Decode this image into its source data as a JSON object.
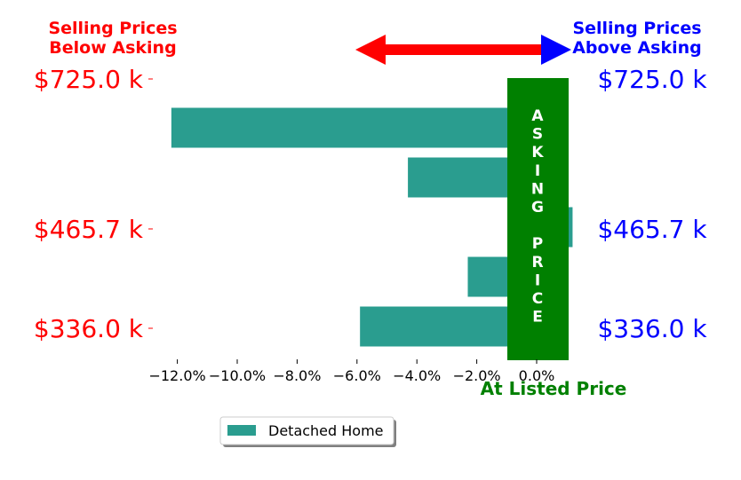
{
  "header": {
    "left_line1": "Selling Prices",
    "left_line2": "Below Asking",
    "right_line1": "Selling Prices",
    "right_line2": "Above Asking"
  },
  "asking_banner": {
    "word1": "ASKING",
    "word2": "PRICE"
  },
  "at_listed_label": "At Listed Price",
  "colors": {
    "bar": "#2a9d8f",
    "below": "#ff0000",
    "above": "#0000ff",
    "asking_band": "#008000"
  },
  "chart_data": {
    "type": "bar",
    "orientation": "horizontal",
    "series": [
      {
        "name": "Detached Home",
        "values": [
          -12.2,
          -4.3,
          1.2,
          -2.3,
          -5.9
        ]
      }
    ],
    "y_tick_labels": [
      "$725.0 k",
      "$465.7 k",
      "$336.0 k"
    ],
    "x_ticks": [
      -12,
      -10,
      -8,
      -6,
      -4,
      -2,
      0
    ],
    "x_tick_labels": [
      "−12.0%",
      "−10.0%",
      "−8.0%",
      "−6.0%",
      "−4.0%",
      "−2.0%",
      "0.0%"
    ],
    "xlim": [
      -13.0,
      1.3
    ],
    "legend": "bottom-center",
    "grid": false
  }
}
